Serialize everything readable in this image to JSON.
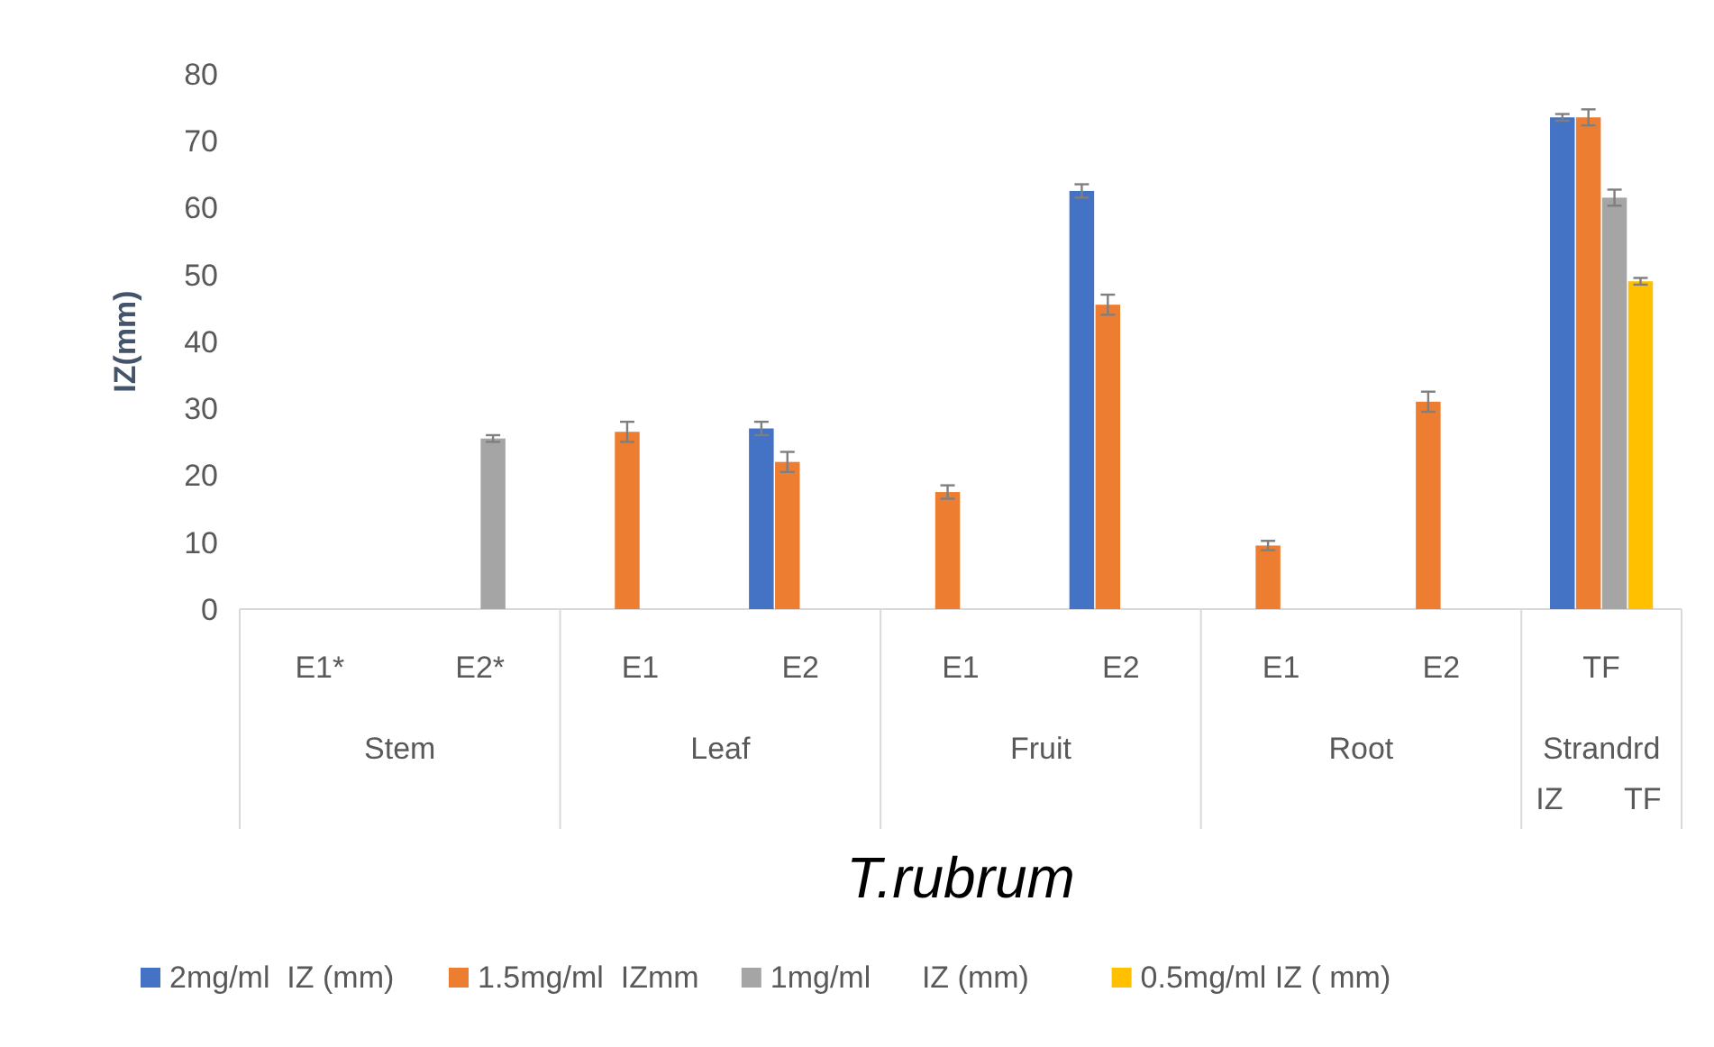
{
  "chart_data": {
    "type": "bar",
    "ylabel": "IZ(mm)",
    "xlabel": "T.rubrum",
    "categories": [
      "E1*",
      "E2*",
      "E1",
      "E2",
      "E1",
      "E2",
      "E1",
      "E2",
      "TF"
    ],
    "annotations": [
      "Stem",
      "Leaf",
      "Fruit",
      "Root",
      "Strandrd IZ TF"
    ],
    "ylim": [
      0,
      80
    ],
    "yticks": [
      0,
      10,
      20,
      30,
      40,
      50,
      60,
      70,
      80
    ],
    "legend": "bottom",
    "series": [
      {
        "name": "2mg/ml  IZ (mm)",
        "color": "#4472c4",
        "values": [
          null,
          null,
          null,
          27,
          null,
          62.5,
          null,
          null,
          73.5
        ],
        "errors": [
          null,
          null,
          null,
          1,
          null,
          1,
          null,
          null,
          0.5
        ]
      },
      {
        "name": "1.5mg/ml  IZmm",
        "color": "#ed7d31",
        "values": [
          null,
          null,
          26.5,
          22,
          17.5,
          45.5,
          9.5,
          31,
          73.5
        ],
        "errors": [
          null,
          null,
          1.5,
          1.5,
          1,
          1.5,
          0.7,
          1.5,
          1.2
        ]
      },
      {
        "name": "1mg/ml      IZ (mm)",
        "color": "#a5a5a5",
        "values": [
          null,
          25.5,
          null,
          null,
          null,
          null,
          null,
          null,
          61.5
        ],
        "errors": [
          null,
          0.5,
          null,
          null,
          null,
          null,
          null,
          null,
          1.2
        ]
      },
      {
        "name": "0.5mg/ml IZ ( mm)",
        "color": "#ffc000",
        "values": [
          null,
          null,
          null,
          null,
          null,
          null,
          null,
          null,
          49
        ],
        "errors": [
          null,
          null,
          null,
          null,
          null,
          null,
          null,
          null,
          0.5
        ]
      }
    ]
  }
}
